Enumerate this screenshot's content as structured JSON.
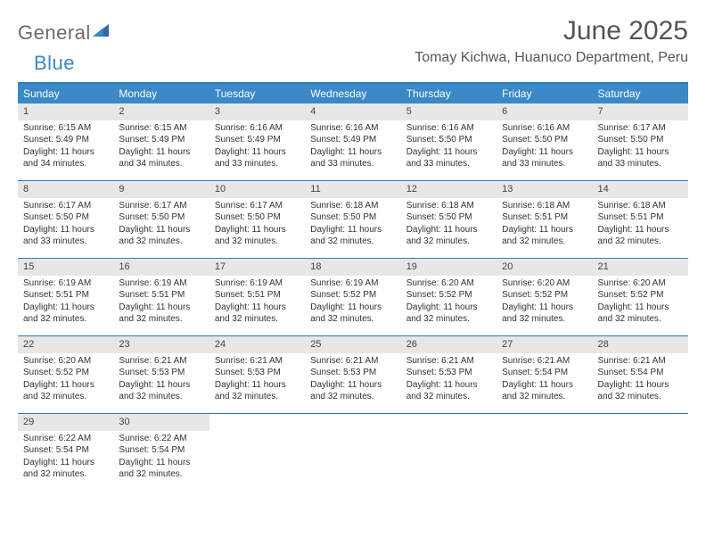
{
  "brand": {
    "general": "General",
    "blue": "Blue"
  },
  "title": "June 2025",
  "location": "Tomay Kichwa, Huanuco Department, Peru",
  "colors": {
    "header_bg": "#3a88c8",
    "border": "#2f7ab8",
    "daynum_bg": "#e7e7e7",
    "text": "#333333",
    "muted": "#555555"
  },
  "day_names": [
    "Sunday",
    "Monday",
    "Tuesday",
    "Wednesday",
    "Thursday",
    "Friday",
    "Saturday"
  ],
  "weeks": [
    [
      {
        "n": "1",
        "sunrise": "Sunrise: 6:15 AM",
        "sunset": "Sunset: 5:49 PM",
        "daylight": "Daylight: 11 hours and 34 minutes."
      },
      {
        "n": "2",
        "sunrise": "Sunrise: 6:15 AM",
        "sunset": "Sunset: 5:49 PM",
        "daylight": "Daylight: 11 hours and 34 minutes."
      },
      {
        "n": "3",
        "sunrise": "Sunrise: 6:16 AM",
        "sunset": "Sunset: 5:49 PM",
        "daylight": "Daylight: 11 hours and 33 minutes."
      },
      {
        "n": "4",
        "sunrise": "Sunrise: 6:16 AM",
        "sunset": "Sunset: 5:49 PM",
        "daylight": "Daylight: 11 hours and 33 minutes."
      },
      {
        "n": "5",
        "sunrise": "Sunrise: 6:16 AM",
        "sunset": "Sunset: 5:50 PM",
        "daylight": "Daylight: 11 hours and 33 minutes."
      },
      {
        "n": "6",
        "sunrise": "Sunrise: 6:16 AM",
        "sunset": "Sunset: 5:50 PM",
        "daylight": "Daylight: 11 hours and 33 minutes."
      },
      {
        "n": "7",
        "sunrise": "Sunrise: 6:17 AM",
        "sunset": "Sunset: 5:50 PM",
        "daylight": "Daylight: 11 hours and 33 minutes."
      }
    ],
    [
      {
        "n": "8",
        "sunrise": "Sunrise: 6:17 AM",
        "sunset": "Sunset: 5:50 PM",
        "daylight": "Daylight: 11 hours and 33 minutes."
      },
      {
        "n": "9",
        "sunrise": "Sunrise: 6:17 AM",
        "sunset": "Sunset: 5:50 PM",
        "daylight": "Daylight: 11 hours and 32 minutes."
      },
      {
        "n": "10",
        "sunrise": "Sunrise: 6:17 AM",
        "sunset": "Sunset: 5:50 PM",
        "daylight": "Daylight: 11 hours and 32 minutes."
      },
      {
        "n": "11",
        "sunrise": "Sunrise: 6:18 AM",
        "sunset": "Sunset: 5:50 PM",
        "daylight": "Daylight: 11 hours and 32 minutes."
      },
      {
        "n": "12",
        "sunrise": "Sunrise: 6:18 AM",
        "sunset": "Sunset: 5:50 PM",
        "daylight": "Daylight: 11 hours and 32 minutes."
      },
      {
        "n": "13",
        "sunrise": "Sunrise: 6:18 AM",
        "sunset": "Sunset: 5:51 PM",
        "daylight": "Daylight: 11 hours and 32 minutes."
      },
      {
        "n": "14",
        "sunrise": "Sunrise: 6:18 AM",
        "sunset": "Sunset: 5:51 PM",
        "daylight": "Daylight: 11 hours and 32 minutes."
      }
    ],
    [
      {
        "n": "15",
        "sunrise": "Sunrise: 6:19 AM",
        "sunset": "Sunset: 5:51 PM",
        "daylight": "Daylight: 11 hours and 32 minutes."
      },
      {
        "n": "16",
        "sunrise": "Sunrise: 6:19 AM",
        "sunset": "Sunset: 5:51 PM",
        "daylight": "Daylight: 11 hours and 32 minutes."
      },
      {
        "n": "17",
        "sunrise": "Sunrise: 6:19 AM",
        "sunset": "Sunset: 5:51 PM",
        "daylight": "Daylight: 11 hours and 32 minutes."
      },
      {
        "n": "18",
        "sunrise": "Sunrise: 6:19 AM",
        "sunset": "Sunset: 5:52 PM",
        "daylight": "Daylight: 11 hours and 32 minutes."
      },
      {
        "n": "19",
        "sunrise": "Sunrise: 6:20 AM",
        "sunset": "Sunset: 5:52 PM",
        "daylight": "Daylight: 11 hours and 32 minutes."
      },
      {
        "n": "20",
        "sunrise": "Sunrise: 6:20 AM",
        "sunset": "Sunset: 5:52 PM",
        "daylight": "Daylight: 11 hours and 32 minutes."
      },
      {
        "n": "21",
        "sunrise": "Sunrise: 6:20 AM",
        "sunset": "Sunset: 5:52 PM",
        "daylight": "Daylight: 11 hours and 32 minutes."
      }
    ],
    [
      {
        "n": "22",
        "sunrise": "Sunrise: 6:20 AM",
        "sunset": "Sunset: 5:52 PM",
        "daylight": "Daylight: 11 hours and 32 minutes."
      },
      {
        "n": "23",
        "sunrise": "Sunrise: 6:21 AM",
        "sunset": "Sunset: 5:53 PM",
        "daylight": "Daylight: 11 hours and 32 minutes."
      },
      {
        "n": "24",
        "sunrise": "Sunrise: 6:21 AM",
        "sunset": "Sunset: 5:53 PM",
        "daylight": "Daylight: 11 hours and 32 minutes."
      },
      {
        "n": "25",
        "sunrise": "Sunrise: 6:21 AM",
        "sunset": "Sunset: 5:53 PM",
        "daylight": "Daylight: 11 hours and 32 minutes."
      },
      {
        "n": "26",
        "sunrise": "Sunrise: 6:21 AM",
        "sunset": "Sunset: 5:53 PM",
        "daylight": "Daylight: 11 hours and 32 minutes."
      },
      {
        "n": "27",
        "sunrise": "Sunrise: 6:21 AM",
        "sunset": "Sunset: 5:54 PM",
        "daylight": "Daylight: 11 hours and 32 minutes."
      },
      {
        "n": "28",
        "sunrise": "Sunrise: 6:21 AM",
        "sunset": "Sunset: 5:54 PM",
        "daylight": "Daylight: 11 hours and 32 minutes."
      }
    ],
    [
      {
        "n": "29",
        "sunrise": "Sunrise: 6:22 AM",
        "sunset": "Sunset: 5:54 PM",
        "daylight": "Daylight: 11 hours and 32 minutes."
      },
      {
        "n": "30",
        "sunrise": "Sunrise: 6:22 AM",
        "sunset": "Sunset: 5:54 PM",
        "daylight": "Daylight: 11 hours and 32 minutes."
      },
      null,
      null,
      null,
      null,
      null
    ]
  ]
}
